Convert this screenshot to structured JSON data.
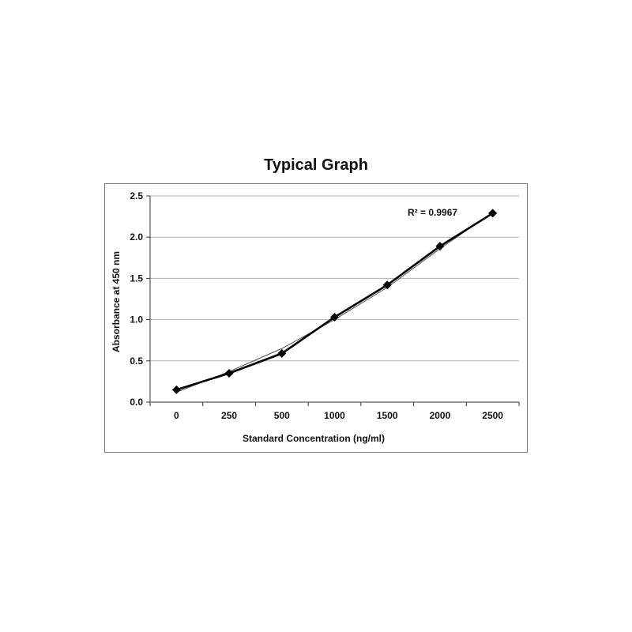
{
  "chart_data": {
    "type": "line",
    "title": "Typical Graph",
    "xlabel": "Standard Concentration (ng/ml)",
    "ylabel": "Absorbance at 450 nm",
    "categories": [
      "0",
      "250",
      "500",
      "1000",
      "1500",
      "2000",
      "2500"
    ],
    "series": [
      {
        "values": [
          0.15,
          0.35,
          0.59,
          1.03,
          1.42,
          1.89,
          2.29
        ]
      }
    ],
    "trendline": {
      "values": [
        0.12,
        0.37,
        0.65,
        1.0,
        1.39,
        1.86,
        2.3
      ]
    },
    "annotation": "R² = 0.9967",
    "ylim": [
      0,
      2.5
    ],
    "yticks": [
      "0.0",
      "0.5",
      "1.0",
      "1.5",
      "2.0",
      "2.5"
    ],
    "grid": true,
    "legend": "none",
    "colors": {
      "series": "#000000",
      "trendline": "#555555",
      "grid": "#b0b0b0"
    }
  }
}
